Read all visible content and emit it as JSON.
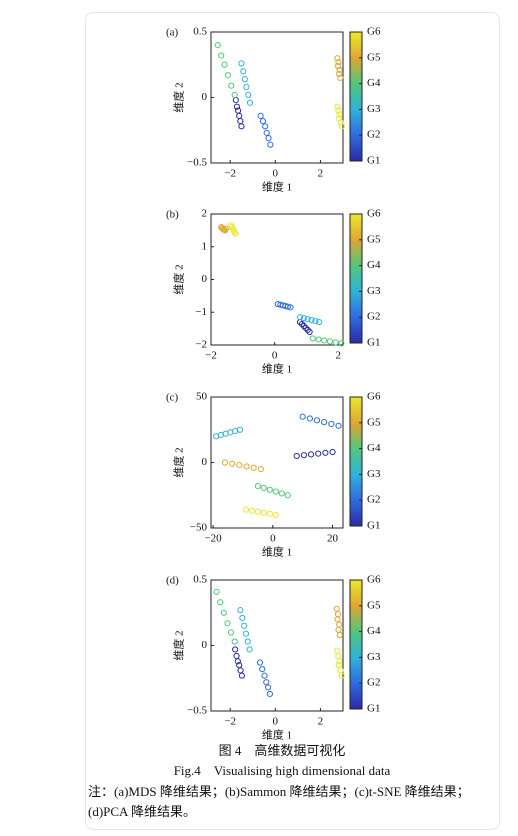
{
  "chart_data": [
    {
      "type": "scatter",
      "panel": "(a)",
      "xlabel": "维度 1",
      "ylabel": "维度 2",
      "marker": "open-circle",
      "xlim": [
        -2.85,
        3.0
      ],
      "ylim": [
        -0.5,
        0.5
      ],
      "xticks": [
        {
          "value": -2,
          "label": "−2"
        },
        0,
        2
      ],
      "yticks": [
        {
          "value": -0.5,
          "label": "−0.5"
        },
        0,
        0.5
      ],
      "series": [
        {
          "name": "G1",
          "color": "#2a2aa6",
          "x": [
            -1.75,
            -1.7,
            -1.65,
            -1.6,
            -1.55,
            -1.5
          ],
          "y": [
            -0.02,
            -0.07,
            -0.1,
            -0.14,
            -0.18,
            -0.22
          ]
        },
        {
          "name": "G2",
          "color": "#2f6be0",
          "x": [
            -0.65,
            -0.55,
            -0.45,
            -0.38,
            -0.3,
            -0.22
          ],
          "y": [
            -0.14,
            -0.18,
            -0.22,
            -0.27,
            -0.31,
            -0.36
          ]
        },
        {
          "name": "G3",
          "color": "#2fb3db",
          "x": [
            -1.5,
            -1.42,
            -1.35,
            -1.28,
            -1.2,
            -1.12
          ],
          "y": [
            0.26,
            0.2,
            0.14,
            0.08,
            0.02,
            -0.04
          ]
        },
        {
          "name": "G4",
          "color": "#52c77a",
          "x": [
            -2.55,
            -2.4,
            -2.25,
            -2.1,
            -1.95,
            -1.8
          ],
          "y": [
            0.4,
            0.32,
            0.25,
            0.17,
            0.09,
            0.02
          ]
        },
        {
          "name": "G5",
          "color": "#e0a632",
          "x": [
            2.75,
            2.8,
            2.78,
            2.85,
            2.82,
            2.88
          ],
          "y": [
            0.3,
            0.27,
            0.24,
            0.21,
            0.18,
            0.15
          ]
        },
        {
          "name": "G6",
          "color": "#e8e82a",
          "x": [
            2.75,
            2.8,
            2.85,
            2.82,
            2.9,
            2.95
          ],
          "y": [
            -0.07,
            -0.1,
            -0.13,
            -0.16,
            -0.19,
            -0.22
          ]
        }
      ]
    },
    {
      "type": "scatter",
      "panel": "(b)",
      "xlabel": "维度 1",
      "ylabel": "维度 2",
      "marker": "open-circle",
      "xlim": [
        -2,
        2.15
      ],
      "ylim": [
        -2,
        2
      ],
      "xticks": [
        {
          "value": -2,
          "label": "−2"
        },
        0,
        2
      ],
      "yticks": [
        {
          "value": -2,
          "label": "−2"
        },
        {
          "value": -1,
          "label": "−1"
        },
        0,
        1,
        2
      ],
      "series": [
        {
          "name": "G1",
          "color": "#2a2aa6",
          "x": [
            0.8,
            0.86,
            0.92,
            0.98,
            1.04,
            1.1
          ],
          "y": [
            -1.3,
            -1.36,
            -1.42,
            -1.48,
            -1.54,
            -1.6
          ]
        },
        {
          "name": "G2",
          "color": "#2f6be0",
          "x": [
            0.1,
            0.18,
            0.26,
            0.34,
            0.42,
            0.5
          ],
          "y": [
            -0.75,
            -0.77,
            -0.79,
            -0.81,
            -0.83,
            -0.85
          ]
        },
        {
          "name": "G3",
          "color": "#2fb3db",
          "x": [
            0.8,
            0.92,
            1.04,
            1.16,
            1.28,
            1.4
          ],
          "y": [
            -1.15,
            -1.18,
            -1.21,
            -1.24,
            -1.27,
            -1.3
          ]
        },
        {
          "name": "G4",
          "color": "#52c77a",
          "x": [
            1.2,
            1.38,
            1.56,
            1.74,
            1.92,
            2.1
          ],
          "y": [
            -1.8,
            -1.83,
            -1.86,
            -1.89,
            -1.92,
            -1.95
          ]
        },
        {
          "name": "G5",
          "color": "#e0a632",
          "x": [
            -1.68,
            -1.65,
            -1.62,
            -1.59,
            -1.56,
            -1.53
          ],
          "y": [
            1.6,
            1.57,
            1.54,
            1.52,
            1.5,
            1.55
          ]
        },
        {
          "name": "G6",
          "color": "#e8e82a",
          "x": [
            -1.38,
            -1.35,
            -1.32,
            -1.29,
            -1.26,
            -1.23
          ],
          "y": [
            1.65,
            1.6,
            1.55,
            1.5,
            1.45,
            1.4
          ]
        }
      ]
    },
    {
      "type": "scatter",
      "panel": "(c)",
      "xlabel": "维度 1",
      "ylabel": "维度 2",
      "marker": "open-circle",
      "xlim": [
        -20.7,
        23.5
      ],
      "ylim": [
        -50,
        50
      ],
      "xticks": [
        {
          "value": -20,
          "label": "−20"
        },
        0,
        20
      ],
      "yticks": [
        {
          "value": -50,
          "label": "−50"
        },
        0,
        50
      ],
      "series": [
        {
          "name": "G1",
          "color": "#2a2aa6",
          "x": [
            8,
            10.4,
            12.8,
            15.2,
            17.6,
            20
          ],
          "y": [
            5,
            5.6,
            6.2,
            6.8,
            7.4,
            8
          ]
        },
        {
          "name": "G2",
          "color": "#2f6be0",
          "x": [
            10,
            12.4,
            14.8,
            17.2,
            19.6,
            22
          ],
          "y": [
            35,
            33.6,
            32.2,
            30.8,
            29.4,
            28
          ]
        },
        {
          "name": "G3",
          "color": "#2fb3db",
          "x": [
            -19,
            -17.4,
            -15.8,
            -14.2,
            -12.6,
            -11
          ],
          "y": [
            20,
            21,
            22,
            23,
            24,
            25
          ]
        },
        {
          "name": "G4",
          "color": "#52c77a",
          "x": [
            -5,
            -3,
            -1,
            1,
            3,
            5
          ],
          "y": [
            -18,
            -19.4,
            -20.8,
            -22.2,
            -23.6,
            -25
          ]
        },
        {
          "name": "G5",
          "color": "#e0a632",
          "x": [
            -16,
            -13.6,
            -11.2,
            -8.8,
            -6.4,
            -4
          ],
          "y": [
            0,
            -1,
            -2,
            -3,
            -4,
            -5
          ]
        },
        {
          "name": "G6",
          "color": "#e8e82a",
          "x": [
            -9,
            -7,
            -5,
            -3,
            -1,
            1
          ],
          "y": [
            -36,
            -36.8,
            -37.6,
            -38.4,
            -39.2,
            -40
          ]
        }
      ]
    },
    {
      "type": "scatter",
      "panel": "(d)",
      "xlabel": "维度 1",
      "ylabel": "维度 2",
      "marker": "open-circle",
      "xlim": [
        -2.85,
        3.0
      ],
      "ylim": [
        -0.5,
        0.5
      ],
      "xticks": [
        {
          "value": -2,
          "label": "−2"
        },
        0,
        2
      ],
      "yticks": [
        {
          "value": -0.5,
          "label": "−0.5"
        },
        0,
        0.5
      ],
      "series": [
        {
          "name": "G1",
          "color": "#2a2aa6",
          "x": [
            -1.78,
            -1.72,
            -1.66,
            -1.6,
            -1.54,
            -1.48
          ],
          "y": [
            -0.03,
            -0.08,
            -0.12,
            -0.15,
            -0.19,
            -0.23
          ]
        },
        {
          "name": "G2",
          "color": "#2f6be0",
          "x": [
            -0.68,
            -0.58,
            -0.48,
            -0.4,
            -0.32,
            -0.24
          ],
          "y": [
            -0.13,
            -0.18,
            -0.23,
            -0.28,
            -0.32,
            -0.37
          ]
        },
        {
          "name": "G3",
          "color": "#2fb3db",
          "x": [
            -1.55,
            -1.46,
            -1.38,
            -1.3,
            -1.22,
            -1.14
          ],
          "y": [
            0.27,
            0.21,
            0.15,
            0.09,
            0.03,
            -0.03
          ]
        },
        {
          "name": "G4",
          "color": "#52c77a",
          "x": [
            -2.6,
            -2.44,
            -2.28,
            -2.12,
            -1.96,
            -1.8
          ],
          "y": [
            0.41,
            0.33,
            0.25,
            0.17,
            0.1,
            0.03
          ]
        },
        {
          "name": "G5",
          "color": "#e0a632",
          "x": [
            2.72,
            2.78,
            2.76,
            2.83,
            2.8,
            2.86
          ],
          "y": [
            0.28,
            0.24,
            0.2,
            0.16,
            0.12,
            0.08
          ]
        },
        {
          "name": "G6",
          "color": "#e8e82a",
          "x": [
            2.74,
            2.79,
            2.84,
            2.81,
            2.89,
            2.94
          ],
          "y": [
            -0.04,
            -0.08,
            -0.12,
            -0.15,
            -0.19,
            -0.23
          ]
        }
      ]
    }
  ],
  "caption": {
    "zh": "图 4　高维数据可视化",
    "en": "Fig.4　Visualising high dimensional data",
    "note": "注：(a)MDS 降维结果；(b)Sammon 降维结果；(c)t-SNE 降维结果；(d)PCA 降维结果。"
  }
}
